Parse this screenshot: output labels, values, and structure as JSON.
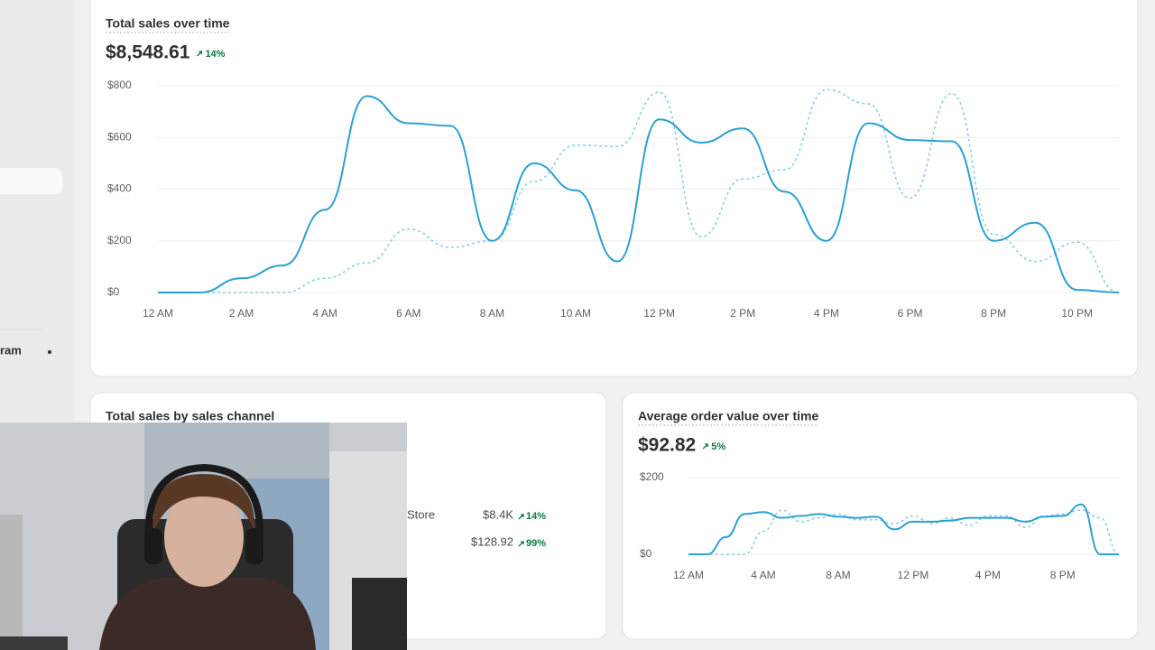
{
  "sidebar": {
    "items": [
      "ram"
    ]
  },
  "chart_data": [
    {
      "type": "line",
      "title": "Total sales over time",
      "total": "$8,548.61",
      "change": "14%",
      "categories": [
        "12 AM",
        null,
        "2 AM",
        null,
        "4 AM",
        null,
        "6 AM",
        null,
        "8 AM",
        null,
        "10 AM",
        null,
        "12 PM",
        null,
        "2 PM",
        null,
        "4 PM",
        null,
        "6 PM",
        null,
        "8 PM",
        null,
        "10 PM",
        null
      ],
      "series": [
        {
          "color": "#2ba1d0",
          "style": "solid",
          "values": [
            0,
            0,
            55,
            105,
            320,
            760,
            655,
            645,
            200,
            500,
            395,
            120,
            670,
            580,
            635,
            390,
            200,
            655,
            590,
            585,
            200,
            270,
            10,
            0
          ]
        },
        {
          "color": "#86cde6",
          "style": "dashed",
          "values": [
            0,
            0,
            0,
            0,
            55,
            115,
            245,
            175,
            200,
            430,
            570,
            565,
            775,
            215,
            440,
            475,
            785,
            730,
            365,
            770,
            225,
            120,
            195,
            0
          ]
        }
      ],
      "ylim": [
        0,
        800
      ],
      "yticks": [
        {
          "value": 0,
          "label": "$0"
        },
        {
          "value": 200,
          "label": "$200"
        },
        {
          "value": 400,
          "label": "$400"
        },
        {
          "value": 600,
          "label": "$600"
        },
        {
          "value": 800,
          "label": "$800"
        }
      ],
      "grid": true
    },
    {
      "type": "line",
      "title": "Average order value over time",
      "total": "$92.82",
      "change": "5%",
      "categories": [
        "12 AM",
        null,
        null,
        null,
        "4 AM",
        null,
        null,
        null,
        "8 AM",
        null,
        null,
        null,
        "12 PM",
        null,
        null,
        null,
        "4 PM",
        null,
        null,
        null,
        "8 PM",
        null,
        null,
        null
      ],
      "series": [
        {
          "color": "#2ba1d0",
          "style": "solid",
          "values": [
            0,
            0,
            45,
            105,
            110,
            95,
            100,
            105,
            98,
            95,
            98,
            65,
            85,
            85,
            88,
            95,
            95,
            95,
            85,
            98,
            100,
            130,
            0,
            0
          ]
        },
        {
          "color": "#86cde6",
          "style": "dashed",
          "values": [
            0,
            0,
            0,
            0,
            60,
            115,
            85,
            95,
            105,
            90,
            90,
            80,
            100,
            80,
            95,
            75,
            100,
            100,
            70,
            100,
            105,
            115,
            95,
            0
          ]
        }
      ],
      "ylim": [
        0,
        200
      ],
      "yticks": [
        {
          "value": 0,
          "label": "$0"
        },
        {
          "value": 200,
          "label": "$200"
        }
      ],
      "grid": true
    }
  ],
  "sales_channel": {
    "title": "Total sales by sales channel",
    "rows": [
      {
        "name": "Store",
        "value": "$8.4K",
        "change": "14%"
      },
      {
        "value": "$128.92",
        "change": "99%"
      }
    ]
  }
}
